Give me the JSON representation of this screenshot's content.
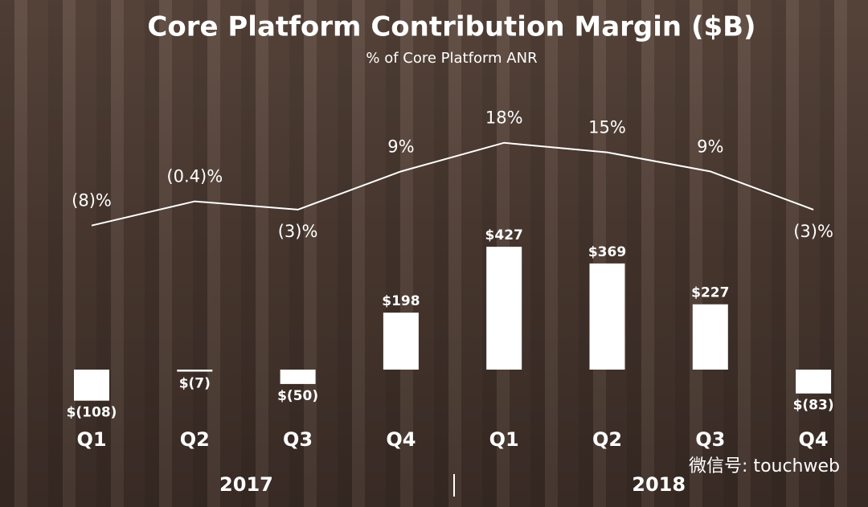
{
  "chart_data": {
    "type": "combo",
    "title": "Core Platform Contribution Margin ($B)",
    "subtitle": "% of Core Platform ANR",
    "categories": [
      "Q1",
      "Q2",
      "Q3",
      "Q4",
      "Q1",
      "Q2",
      "Q3",
      "Q4"
    ],
    "groups": [
      "2017",
      "2018"
    ],
    "bars": {
      "color": "#ffffff",
      "values": [
        -108,
        -7,
        -50,
        198,
        427,
        369,
        227,
        -83
      ],
      "value_labels": [
        "$(108)",
        "$(7)",
        "$(50)",
        "$198",
        "$427",
        "$369",
        "$227",
        "$(83)"
      ]
    },
    "line": {
      "color": "#ffffff",
      "values": [
        -8,
        -0.4,
        -3,
        9,
        18,
        15,
        9,
        -3
      ],
      "value_labels": [
        "(8)%",
        "(0.4)%",
        "(3)%",
        "9%",
        "18%",
        "15%",
        "9%",
        "(3)%"
      ]
    },
    "watermark": "微信号: touchweb"
  }
}
